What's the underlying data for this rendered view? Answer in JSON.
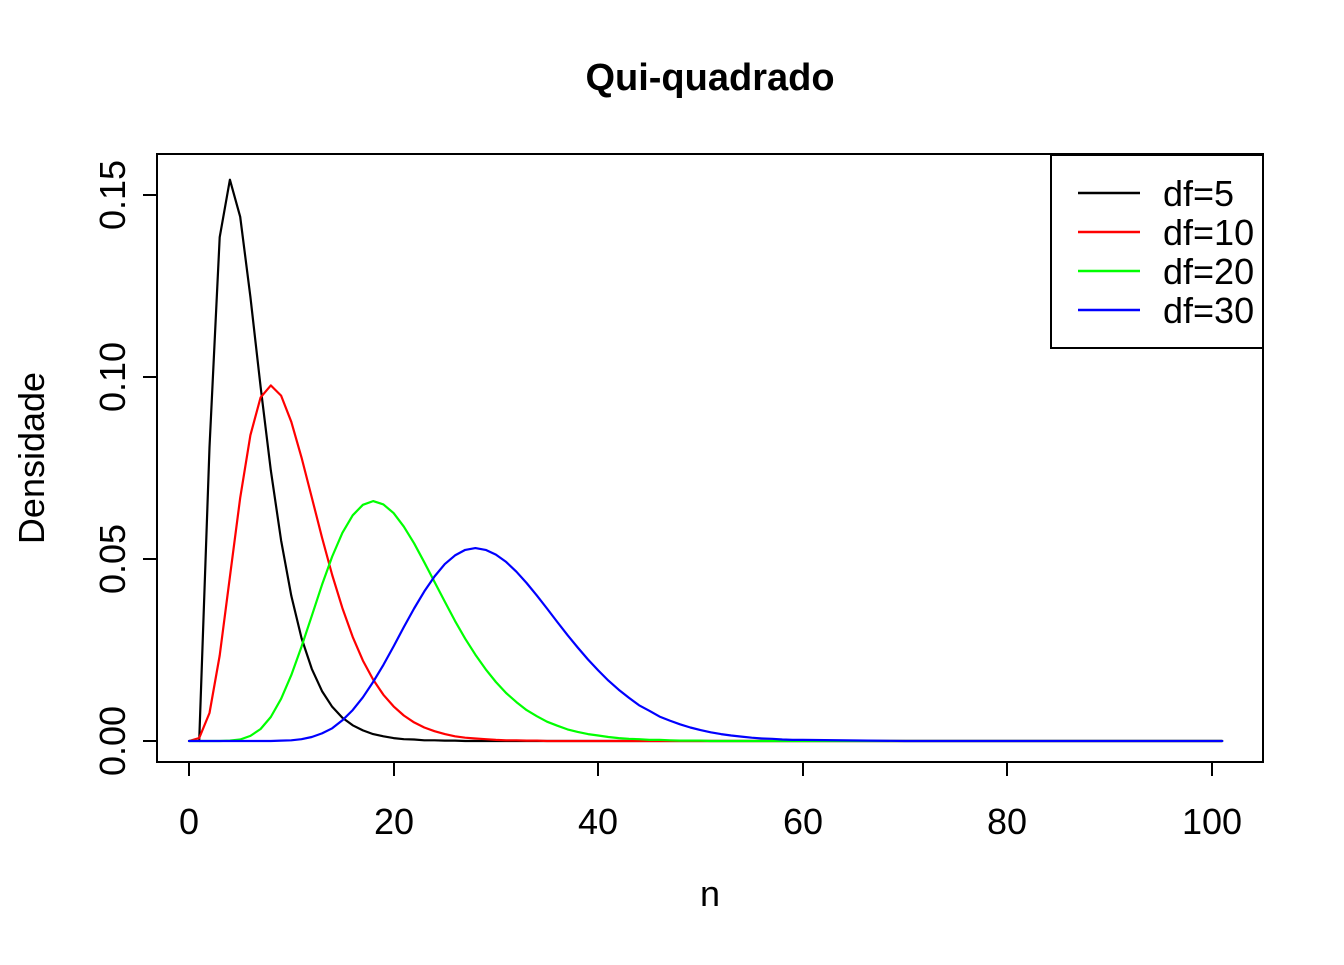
{
  "title": "Qui-quadrado",
  "background_color": "#FFFFFF",
  "text_color": "#000000",
  "chart_data": {
    "type": "line",
    "title": "Qui-quadrado",
    "xlabel": "n",
    "ylabel": "Densidade",
    "xlim": [
      0,
      101
    ],
    "ylim": [
      0,
      0.1542
    ],
    "grid": false,
    "legend_position": "topright",
    "x_ticks": [
      "0",
      "20",
      "40",
      "60",
      "80",
      "100"
    ],
    "x_tick_values": [
      0,
      20,
      40,
      60,
      80,
      100
    ],
    "y_ticks": [
      "0.00",
      "0.05",
      "0.10",
      "0.15"
    ],
    "y_tick_values": [
      0.0,
      0.05,
      0.1,
      0.15
    ],
    "series": [
      {
        "name": "chi-square-df5",
        "label": "df=5",
        "color": "#000000",
        "peak": {
          "x": 4,
          "y": 0.1542
        },
        "x": [
          1,
          2,
          3,
          4,
          5,
          6,
          7,
          8,
          9,
          10,
          11,
          12,
          13,
          14,
          15,
          16,
          17,
          18,
          19,
          20,
          21,
          22,
          23,
          24,
          25,
          26,
          27,
          28,
          29,
          30,
          31,
          32,
          33,
          34,
          35,
          36,
          37,
          38,
          39,
          40,
          41,
          42,
          43,
          44,
          45,
          46,
          47,
          48,
          49,
          50,
          51,
          52,
          53,
          54,
          55,
          56,
          57,
          58,
          59,
          60,
          61,
          70,
          80,
          90,
          101
        ],
        "y": [
          0,
          0.0807,
          0.1384,
          0.1542,
          0.144,
          0.122,
          0.0973,
          0.0744,
          0.0551,
          0.0399,
          0.0283,
          0.0198,
          0.0137,
          0.0094,
          0.0064,
          0.0043,
          0.0029,
          0.0019,
          0.0013,
          0.0008,
          0.0005,
          0.0004,
          0.0002,
          0.0002,
          0.0001,
          0.0001,
          0,
          0,
          0,
          0,
          0,
          0,
          0,
          0,
          0,
          0,
          0,
          0,
          0,
          0,
          0,
          0,
          0,
          0,
          0,
          0,
          0,
          0,
          0,
          0,
          0,
          0,
          0,
          0,
          0,
          0,
          0,
          0,
          0,
          0,
          0,
          0,
          0,
          0,
          0
        ]
      },
      {
        "name": "chi-square-df10",
        "label": "df=10",
        "color": "#FF0000",
        "peak": {
          "x": 8,
          "y": 0.0977
        },
        "x": [
          0,
          1,
          2,
          3,
          4,
          5,
          6,
          7,
          8,
          9,
          10,
          11,
          12,
          13,
          14,
          15,
          16,
          17,
          18,
          19,
          20,
          21,
          22,
          23,
          24,
          25,
          26,
          27,
          28,
          29,
          30,
          31,
          32,
          33,
          34,
          35,
          36,
          37,
          38,
          39,
          40,
          41,
          42,
          43,
          44,
          45,
          46,
          47,
          48,
          49,
          50,
          51,
          52,
          53,
          54,
          55,
          56,
          57,
          58,
          59,
          60,
          70,
          80,
          90,
          101
        ],
        "y": [
          0,
          0.0008,
          0.0077,
          0.0235,
          0.0451,
          0.0668,
          0.084,
          0.0944,
          0.0977,
          0.0949,
          0.0877,
          0.0779,
          0.0669,
          0.0559,
          0.0456,
          0.0365,
          0.0286,
          0.0221,
          0.0169,
          0.0127,
          0.0095,
          0.007,
          0.0051,
          0.0037,
          0.0027,
          0.0019,
          0.0013,
          0.0009,
          0.0007,
          0.0005,
          0.0003,
          0.0002,
          0.0002,
          0.0001,
          0.0001,
          0,
          0,
          0,
          0,
          0,
          0,
          0,
          0,
          0,
          0,
          0,
          0,
          0,
          0,
          0,
          0,
          0,
          0,
          0,
          0,
          0,
          0,
          0,
          0,
          0,
          0,
          0,
          0,
          0,
          0
        ]
      },
      {
        "name": "chi-square-df20",
        "label": "df=20",
        "color": "#00FF00",
        "peak": {
          "x": 18,
          "y": 0.0659
        },
        "x": [
          0,
          1,
          2,
          3,
          4,
          5,
          6,
          7,
          8,
          9,
          10,
          11,
          12,
          13,
          14,
          15,
          16,
          17,
          18,
          19,
          20,
          21,
          22,
          23,
          24,
          25,
          26,
          27,
          28,
          29,
          30,
          31,
          32,
          33,
          34,
          35,
          36,
          37,
          38,
          39,
          40,
          41,
          42,
          43,
          44,
          45,
          46,
          47,
          48,
          49,
          50,
          51,
          52,
          53,
          54,
          55,
          56,
          57,
          58,
          59,
          60,
          70,
          80,
          90,
          101
        ],
        "y": [
          0,
          0,
          0,
          0,
          0.0001,
          0.0004,
          0.0014,
          0.0033,
          0.0066,
          0.0116,
          0.0181,
          0.0259,
          0.0344,
          0.0429,
          0.0507,
          0.0572,
          0.062,
          0.0649,
          0.0659,
          0.065,
          0.0626,
          0.0589,
          0.0543,
          0.0491,
          0.0437,
          0.0383,
          0.033,
          0.0281,
          0.0237,
          0.0197,
          0.0162,
          0.0132,
          0.0107,
          0.0085,
          0.0068,
          0.0053,
          0.0042,
          0.0032,
          0.0025,
          0.0019,
          0.0015,
          0.0011,
          0.0008,
          0.0006,
          0.0005,
          0.0003,
          0.0003,
          0.0002,
          0.0001,
          0.0001,
          0.0001,
          0,
          0,
          0,
          0,
          0,
          0,
          0,
          0,
          0,
          0,
          0,
          0,
          0,
          0
        ]
      },
      {
        "name": "chi-square-df30",
        "label": "df=30",
        "color": "#0000FF",
        "peak": {
          "x": 28,
          "y": 0.053
        },
        "x": [
          0,
          1,
          2,
          3,
          4,
          5,
          6,
          7,
          8,
          9,
          10,
          11,
          12,
          13,
          14,
          15,
          16,
          17,
          18,
          19,
          20,
          21,
          22,
          23,
          24,
          25,
          26,
          27,
          28,
          29,
          30,
          31,
          32,
          33,
          34,
          35,
          36,
          37,
          38,
          39,
          40,
          41,
          42,
          43,
          44,
          45,
          46,
          47,
          48,
          49,
          50,
          51,
          52,
          53,
          54,
          55,
          56,
          57,
          58,
          59,
          60,
          70,
          80,
          90,
          101
        ],
        "y": [
          0,
          0,
          0,
          0,
          0,
          0,
          0,
          0,
          0,
          0.0001,
          0.0002,
          0.0005,
          0.0011,
          0.0021,
          0.0035,
          0.0057,
          0.0085,
          0.012,
          0.0162,
          0.0209,
          0.026,
          0.0313,
          0.0364,
          0.0411,
          0.0452,
          0.0486,
          0.051,
          0.0525,
          0.053,
          0.0525,
          0.0512,
          0.0492,
          0.0465,
          0.0434,
          0.04,
          0.0364,
          0.0327,
          0.0291,
          0.0257,
          0.0224,
          0.0194,
          0.0166,
          0.0141,
          0.0119,
          0.0098,
          0.0083,
          0.0067,
          0.0056,
          0.0046,
          0.0037,
          0.003,
          0.0024,
          0.0019,
          0.0015,
          0.0012,
          0.0009,
          0.0007,
          0.0006,
          0.0004,
          0.0003,
          0.0003,
          0,
          0,
          0,
          0
        ]
      }
    ]
  }
}
